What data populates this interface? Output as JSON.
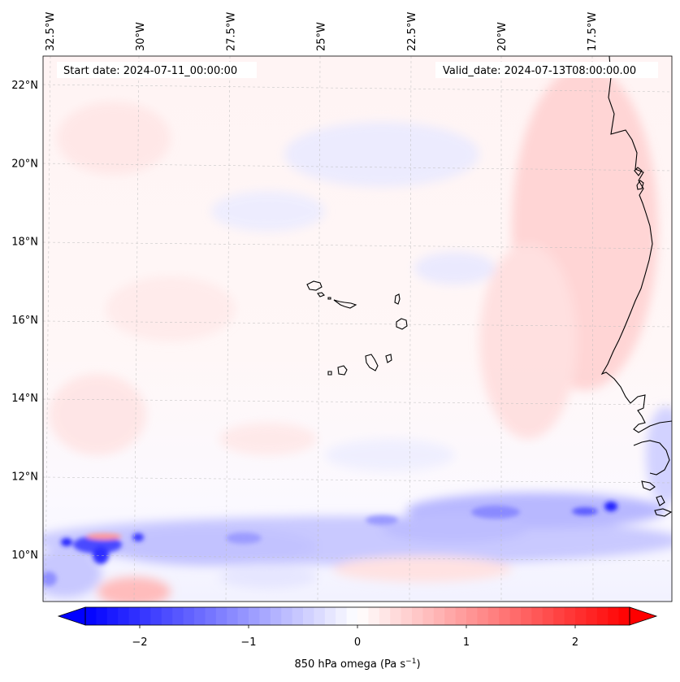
{
  "header": {
    "start_date": "Start date: 2024-07-11_00:00:00",
    "valid_date": "Valid_date: 2024-07-13T08:00:00.00"
  },
  "map": {
    "field": "850 hPa omega",
    "region": "Cape Verde / West African coast",
    "lon_ticks": [
      {
        "value": -32.5,
        "label": "32.5°W"
      },
      {
        "value": -30.0,
        "label": "30°W"
      },
      {
        "value": -27.5,
        "label": "27.5°W"
      },
      {
        "value": -25.0,
        "label": "25°W"
      },
      {
        "value": -22.5,
        "label": "22.5°W"
      },
      {
        "value": -20.0,
        "label": "20°W"
      },
      {
        "value": -17.5,
        "label": "17.5°W"
      }
    ],
    "lat_ticks": [
      {
        "value": 22,
        "label": "22°N"
      },
      {
        "value": 20,
        "label": "20°N"
      },
      {
        "value": 18,
        "label": "18°N"
      },
      {
        "value": 16,
        "label": "16°N"
      },
      {
        "value": 14,
        "label": "14°N"
      },
      {
        "value": 12,
        "label": "12°N"
      },
      {
        "value": 10,
        "label": "10°N"
      }
    ],
    "islands": [
      "Santo Antão",
      "São Vicente",
      "Santa Luzia",
      "São Nicolau",
      "Sal",
      "Boa Vista",
      "Maio",
      "Santiago",
      "Fogo",
      "Brava"
    ]
  },
  "colorbar": {
    "min": -2.5,
    "max": 2.5,
    "ticks": [
      {
        "value": -2,
        "label": "−2"
      },
      {
        "value": -1,
        "label": "−1"
      },
      {
        "value": 0,
        "label": "0"
      },
      {
        "value": 1,
        "label": "1"
      },
      {
        "value": 2,
        "label": "2"
      }
    ],
    "label_text": "850 hPa omega (Pa s",
    "label_exp": "−1",
    "label_close": ")",
    "low_color": "#0000ff",
    "mid_color": "#ffffff",
    "high_color": "#ff0000"
  }
}
